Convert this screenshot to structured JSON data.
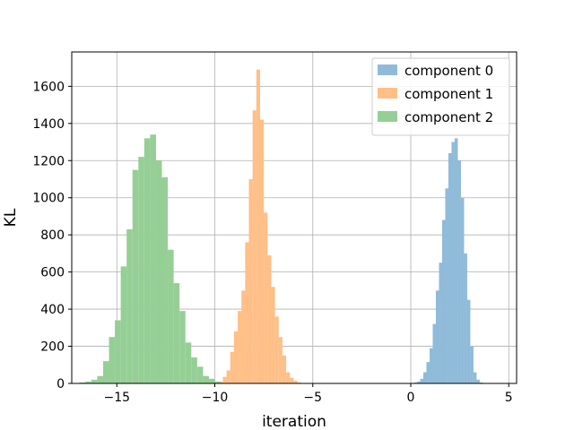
{
  "chart_data": {
    "type": "bar",
    "title": "",
    "xlabel": "iteration",
    "ylabel": "KL",
    "xlim": [
      -17.3,
      5.4
    ],
    "ylim": [
      0,
      1785
    ],
    "xticks": [
      -15,
      -10,
      -5,
      0,
      5
    ],
    "xtick_labels": [
      "−15",
      "−10",
      "−5",
      "0",
      "5"
    ],
    "yticks": [
      0,
      200,
      400,
      600,
      800,
      1000,
      1200,
      1400,
      1600
    ],
    "ytick_labels": [
      "0",
      "200",
      "400",
      "600",
      "800",
      "1000",
      "1200",
      "1400",
      "1600"
    ],
    "grid": true,
    "legend_position": "top-right",
    "series": [
      {
        "name": "component 0",
        "color": "#8fbbd9",
        "bin_edges": [
          0.0,
          0.16,
          0.32,
          0.48,
          0.64,
          0.8,
          0.96,
          1.12,
          1.28,
          1.44,
          1.6,
          1.76,
          1.92,
          2.08,
          2.24,
          2.4,
          2.56,
          2.72,
          2.88,
          3.04,
          3.2,
          3.36,
          3.52,
          3.68
        ],
        "counts": [
          0,
          5,
          10,
          25,
          60,
          115,
          190,
          320,
          500,
          650,
          880,
          1050,
          1240,
          1300,
          1320,
          1200,
          1000,
          700,
          450,
          200,
          60,
          20,
          5
        ]
      },
      {
        "name": "component 1",
        "color": "#ffbf86",
        "bin_edges": [
          -9.97,
          -9.78,
          -9.59,
          -9.4,
          -9.21,
          -9.02,
          -8.83,
          -8.64,
          -8.45,
          -8.26,
          -8.07,
          -7.88,
          -7.69,
          -7.5,
          -7.31,
          -7.12,
          -6.93,
          -6.74,
          -6.55,
          -6.36,
          -6.17,
          -5.98,
          -5.79,
          -5.6,
          -5.41
        ],
        "counts": [
          5,
          10,
          35,
          70,
          170,
          280,
          390,
          500,
          760,
          1100,
          1470,
          1690,
          1420,
          920,
          690,
          520,
          360,
          250,
          150,
          60,
          30,
          15,
          5,
          2
        ]
      },
      {
        "name": "component 2",
        "color": "#95cf95",
        "bin_edges": [
          -16.9,
          -16.6,
          -16.3,
          -16.0,
          -15.7,
          -15.4,
          -15.1,
          -14.8,
          -14.5,
          -14.2,
          -13.9,
          -13.6,
          -13.3,
          -13.0,
          -12.7,
          -12.4,
          -12.1,
          -11.8,
          -11.5,
          -11.2,
          -10.9,
          -10.6,
          -10.3,
          -10.0,
          -9.7
        ],
        "counts": [
          5,
          10,
          20,
          40,
          120,
          250,
          340,
          630,
          830,
          1150,
          1220,
          1320,
          1340,
          1200,
          1110,
          720,
          540,
          390,
          220,
          140,
          90,
          40,
          25,
          10
        ]
      }
    ]
  }
}
